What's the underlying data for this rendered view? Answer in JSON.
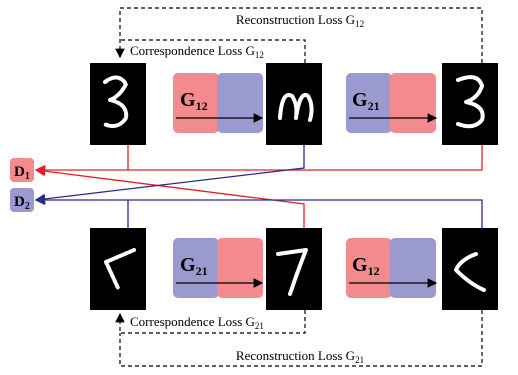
{
  "losses": [
    {
      "text": "Reconstruction Loss G",
      "sub": "12"
    },
    {
      "text": "Correspondence Loss G",
      "sub": "12"
    },
    {
      "text": "Correspondence Loss G",
      "sub": "21"
    },
    {
      "text": "Reconstruction Loss G",
      "sub": "21"
    }
  ],
  "generators": [
    {
      "text": "G",
      "sub": "12"
    },
    {
      "text": "G",
      "sub": "21"
    },
    {
      "text": "G",
      "sub": "21"
    },
    {
      "text": "G",
      "sub": "12"
    }
  ],
  "discriminators": [
    {
      "text": "D",
      "sub": "1"
    },
    {
      "text": "D",
      "sub": "2"
    }
  ]
}
